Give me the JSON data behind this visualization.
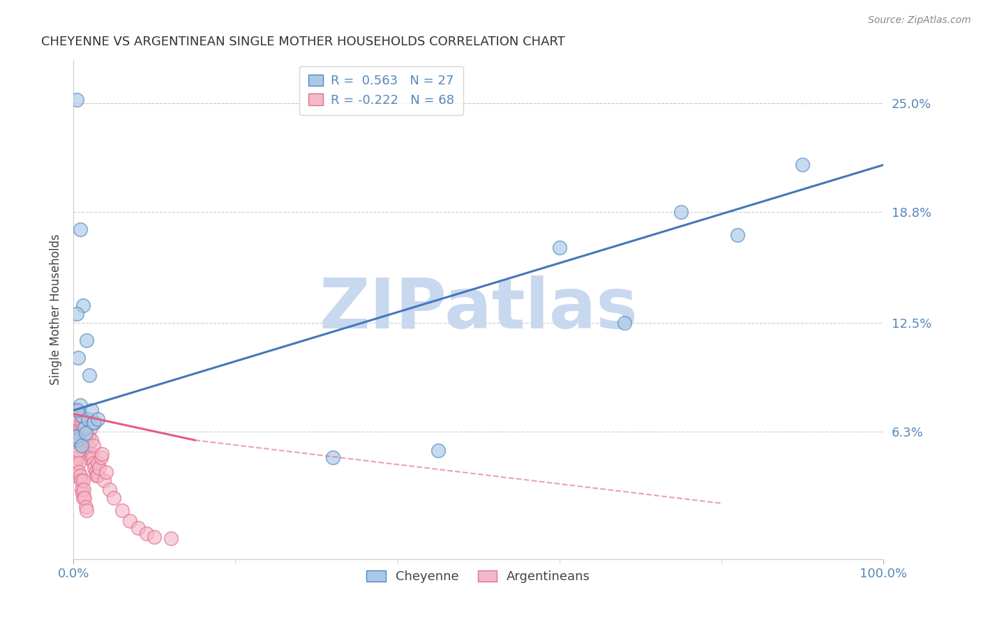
{
  "title": "CHEYENNE VS ARGENTINEAN SINGLE MOTHER HOUSEHOLDS CORRELATION CHART",
  "source": "Source: ZipAtlas.com",
  "ylabel": "Single Mother Households",
  "ytick_labels": [
    "25.0%",
    "18.8%",
    "12.5%",
    "6.3%"
  ],
  "ytick_values": [
    0.25,
    0.188,
    0.125,
    0.063
  ],
  "xlim": [
    0.0,
    1.0
  ],
  "ylim": [
    -0.01,
    0.275
  ],
  "cheyenne_color": "#aac8e8",
  "argentinean_color": "#f5b8c8",
  "cheyenne_edge_color": "#5588bb",
  "argentinean_edge_color": "#e07090",
  "blue_line_color": "#4477bb",
  "pink_line_color": "#e06080",
  "watermark": "ZIPatlas",
  "watermark_color": "#c8d8ee",
  "cheyenne_x": [
    0.004,
    0.008,
    0.012,
    0.016,
    0.02,
    0.004,
    0.006,
    0.008,
    0.01,
    0.014,
    0.018,
    0.022,
    0.026,
    0.6,
    0.68,
    0.75,
    0.82,
    0.9,
    0.005,
    0.003,
    0.01,
    0.015,
    0.025,
    0.03,
    0.32,
    0.45,
    0.005
  ],
  "cheyenne_y": [
    0.252,
    0.178,
    0.135,
    0.115,
    0.095,
    0.13,
    0.105,
    0.078,
    0.072,
    0.065,
    0.07,
    0.075,
    0.068,
    0.168,
    0.125,
    0.188,
    0.175,
    0.215,
    0.058,
    0.06,
    0.055,
    0.062,
    0.068,
    0.07,
    0.048,
    0.052,
    0.075
  ],
  "argentinean_x": [
    0.002,
    0.003,
    0.004,
    0.003,
    0.005,
    0.004,
    0.006,
    0.007,
    0.005,
    0.008,
    0.008,
    0.009,
    0.01,
    0.01,
    0.011,
    0.012,
    0.012,
    0.013,
    0.014,
    0.015,
    0.015,
    0.016,
    0.017,
    0.018,
    0.019,
    0.02,
    0.021,
    0.022,
    0.023,
    0.024,
    0.025,
    0.025,
    0.026,
    0.027,
    0.028,
    0.03,
    0.03,
    0.032,
    0.034,
    0.035,
    0.038,
    0.04,
    0.045,
    0.05,
    0.06,
    0.07,
    0.08,
    0.09,
    0.1,
    0.12,
    0.002,
    0.003,
    0.004,
    0.004,
    0.005,
    0.006,
    0.007,
    0.007,
    0.008,
    0.009,
    0.01,
    0.011,
    0.012,
    0.012,
    0.013,
    0.014,
    0.015,
    0.016
  ],
  "argentinean_y": [
    0.075,
    0.072,
    0.068,
    0.065,
    0.07,
    0.062,
    0.06,
    0.058,
    0.055,
    0.065,
    0.06,
    0.062,
    0.068,
    0.055,
    0.06,
    0.058,
    0.065,
    0.052,
    0.058,
    0.055,
    0.06,
    0.05,
    0.048,
    0.055,
    0.06,
    0.068,
    0.065,
    0.058,
    0.05,
    0.048,
    0.045,
    0.055,
    0.042,
    0.04,
    0.038,
    0.045,
    0.038,
    0.042,
    0.048,
    0.05,
    0.035,
    0.04,
    0.03,
    0.025,
    0.018,
    0.012,
    0.008,
    0.005,
    0.003,
    0.002,
    0.045,
    0.042,
    0.038,
    0.05,
    0.048,
    0.052,
    0.045,
    0.04,
    0.038,
    0.035,
    0.03,
    0.028,
    0.025,
    0.035,
    0.03,
    0.025,
    0.02,
    0.018
  ],
  "blue_trend_x0": 0.0,
  "blue_trend_y0": 0.075,
  "blue_trend_x1": 1.0,
  "blue_trend_y1": 0.215,
  "pink_trend_x0": 0.0,
  "pink_trend_y0": 0.073,
  "pink_trend_solid_x1": 0.15,
  "pink_trend_solid_y1": 0.058,
  "pink_trend_dash_x1": 0.8,
  "pink_trend_dash_y1": 0.022
}
